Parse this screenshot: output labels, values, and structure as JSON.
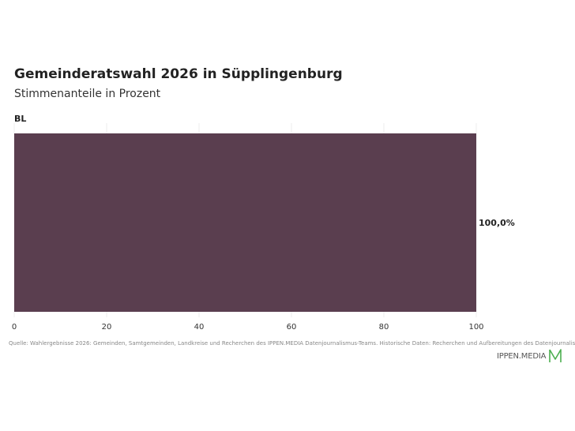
{
  "header": {
    "title": "Gemeinderatswahl 2026 in Süpplingenburg",
    "subtitle": "Stimmenanteile in Prozent"
  },
  "chart_data": {
    "type": "bar",
    "orientation": "horizontal",
    "categories": [
      "BL"
    ],
    "values": [
      100.0
    ],
    "value_labels": [
      "100,0%"
    ],
    "xlim": [
      0,
      100
    ],
    "xticks": [
      0,
      20,
      40,
      60,
      80,
      100
    ],
    "grid": true,
    "bar_color": "#5a3e4f"
  },
  "footer": {
    "source": "Quelle: Wahlergebnisse 2026: Gemeinden, Samtgemeinden, Landkreise und Recherchen des IPPEN.MEDIA Datenjournalismus-Teams. Historische Daten: Recherchen und Aufbereitungen des Datenjournalismus-Teams",
    "logo_text": "IPPEN.MEDIA",
    "logo_color": "#4caf50"
  }
}
